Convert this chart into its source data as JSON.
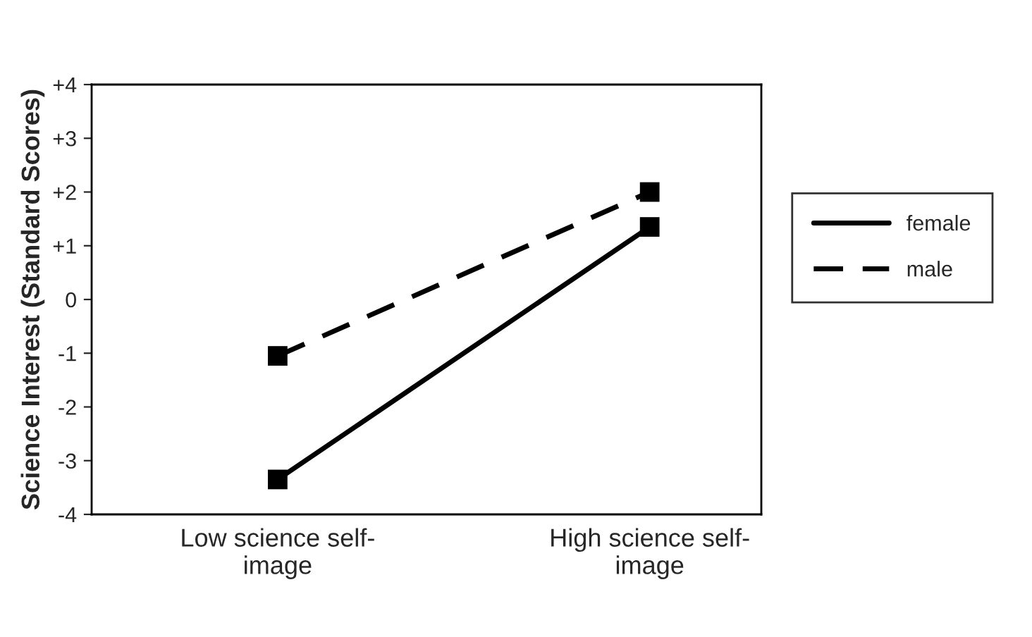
{
  "chart_data": {
    "type": "line",
    "ylabel": "Science Interest (Standard Scores)",
    "categories": [
      "Low science self-\nimage",
      "High science self-\nimage"
    ],
    "series": [
      {
        "name": "female",
        "color": "#000000",
        "line_style": "solid",
        "values": [
          -3.35,
          1.35
        ]
      },
      {
        "name": "male",
        "color": "#000000",
        "line_style": "dashed",
        "values": [
          -1.05,
          2.0
        ]
      }
    ],
    "ylim": [
      -4,
      4
    ],
    "yticks": [
      {
        "value": 4,
        "label": "+4"
      },
      {
        "value": 3,
        "label": "+3"
      },
      {
        "value": 2,
        "label": "+2"
      },
      {
        "value": 1,
        "label": "+1"
      },
      0,
      {
        "value": -1,
        "label": "-1"
      },
      {
        "value": -2,
        "label": "-2"
      },
      {
        "value": -3,
        "label": "-3"
      },
      {
        "value": -4,
        "label": "-4"
      }
    ],
    "marker": "square",
    "legend": "right",
    "grid": false
  }
}
